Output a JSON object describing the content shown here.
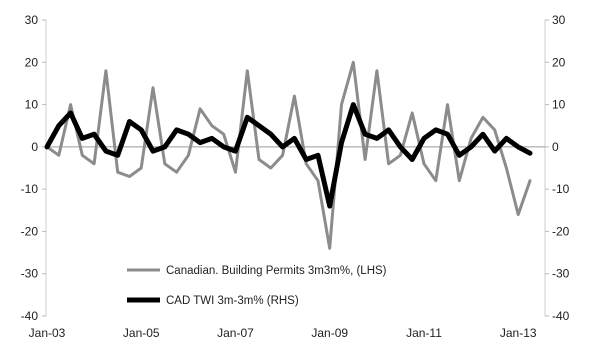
{
  "chart_data": {
    "type": "line",
    "x": [
      "Jan-03",
      "Apr-03",
      "Jul-03",
      "Oct-03",
      "Jan-04",
      "Apr-04",
      "Jul-04",
      "Oct-04",
      "Jan-05",
      "Apr-05",
      "Jul-05",
      "Oct-05",
      "Jan-06",
      "Apr-06",
      "Jul-06",
      "Oct-06",
      "Jan-07",
      "Apr-07",
      "Jul-07",
      "Oct-07",
      "Jan-08",
      "Apr-08",
      "Jul-08",
      "Oct-08",
      "Jan-09",
      "Apr-09",
      "Jul-09",
      "Oct-09",
      "Jan-10",
      "Apr-10",
      "Jul-10",
      "Oct-10",
      "Jan-11",
      "Apr-11",
      "Jul-11",
      "Oct-11",
      "Jan-12",
      "Apr-12",
      "Jul-12",
      "Oct-12",
      "Jan-13",
      "Apr-13"
    ],
    "x_tick_labels": [
      "Jan-03",
      "Jan-05",
      "Jan-07",
      "Jan-09",
      "Jan-11",
      "Jan-13"
    ],
    "x_tick_indices": [
      0,
      8,
      16,
      24,
      32,
      40
    ],
    "series": [
      {
        "name": "Canadian. Building Permits 3m3m%, (LHS)",
        "axis": "left",
        "color": "#8c8c8c",
        "values": [
          0,
          -2,
          10,
          -2,
          -4,
          18,
          -6,
          -7,
          -5,
          14,
          -4,
          -6,
          -2,
          9,
          5,
          3,
          -6,
          18,
          -3,
          -5,
          -2,
          12,
          -4,
          -8,
          -24,
          10,
          20,
          -3,
          18,
          -4,
          -2,
          8,
          -4,
          -8,
          10,
          -8,
          2,
          7,
          4,
          -5,
          -16,
          -8
        ]
      },
      {
        "name": "CAD TWI 3m-3m% (RHS)",
        "axis": "right",
        "color": "#000000",
        "values": [
          0,
          5,
          8,
          2,
          3,
          -1,
          -2,
          6,
          4,
          -1,
          0,
          4,
          3,
          1,
          2,
          0,
          -1,
          7,
          5,
          3,
          0,
          2,
          -3,
          -2,
          -14,
          1,
          10,
          3,
          2,
          4,
          0,
          -3,
          2,
          4,
          3,
          -2,
          0,
          3,
          -1,
          2,
          0,
          -1.5
        ]
      }
    ],
    "yleft_range": [
      -40,
      30
    ],
    "yright_range": [
      -40,
      30
    ],
    "y_ticks": [
      30,
      20,
      10,
      0,
      -10,
      -20,
      -30,
      -40
    ],
    "zero_line": true,
    "legend_placement": "bottom-center"
  }
}
